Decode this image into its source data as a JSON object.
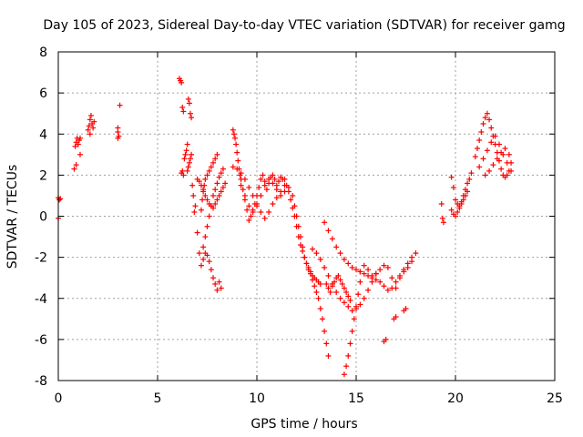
{
  "chart_data": {
    "type": "scatter",
    "title": "Day 105 of 2023, Sidereal Day-to-day VTEC variation (SDTVAR) for receiver gamg",
    "xlabel": "GPS time / hours",
    "ylabel": "SDTVAR / TECUs",
    "xlim": [
      0,
      25
    ],
    "ylim": [
      -8,
      8
    ],
    "xticks": [
      0,
      5,
      10,
      15,
      20,
      25
    ],
    "yticks": [
      -8,
      -6,
      -4,
      -2,
      0,
      2,
      4,
      6,
      8
    ],
    "xtick_labels": [
      "0",
      "5",
      "10",
      "15",
      "20",
      "25"
    ],
    "ytick_labels": [
      "-8",
      "-6",
      "-4",
      "-2",
      "0",
      "2",
      "4",
      "6",
      "8"
    ],
    "grid": true,
    "marker": "plus",
    "color": "#ff0000",
    "series": [
      {
        "values_note": "",
        "x": [
          0.0,
          0.0,
          0.05,
          0.1,
          0.8,
          0.85,
          0.9,
          0.95,
          1.0,
          1.05,
          1.1,
          0.9,
          1.1,
          1.5,
          1.55,
          1.6,
          1.65,
          1.7,
          1.75,
          1.8,
          1.6,
          3.0,
          3.0,
          3.0,
          3.05,
          3.1,
          6.1,
          6.15,
          6.2,
          6.25,
          6.3,
          6.2,
          6.25,
          6.3,
          6.35,
          6.4,
          6.45,
          6.5,
          6.55,
          6.6,
          6.65,
          6.7,
          6.5,
          6.55,
          6.6,
          6.65,
          6.7,
          6.75,
          6.8,
          6.85,
          6.9,
          7.0,
          7.1,
          7.2,
          7.3,
          7.4,
          7.5,
          7.6,
          7.7,
          7.8,
          7.9,
          8.0,
          8.1,
          8.2,
          7.2,
          7.25,
          7.3,
          7.35,
          7.4,
          7.5,
          7.6,
          7.7,
          7.8,
          7.9,
          8.0,
          7.3,
          7.4,
          7.5,
          7.6,
          7.7,
          7.8,
          7.9,
          8.0,
          8.1,
          8.2,
          8.3,
          7.0,
          7.1,
          7.2,
          7.3,
          7.4,
          7.5,
          7.6,
          7.7,
          7.8,
          7.9,
          8.0,
          8.1,
          8.2,
          8.3,
          8.4,
          8.8,
          8.85,
          8.9,
          8.95,
          9.0,
          9.05,
          9.1,
          9.15,
          9.2,
          9.3,
          9.4,
          9.5,
          9.6,
          9.7,
          9.8,
          9.9,
          10.0,
          10.1,
          10.2,
          10.3,
          10.4,
          10.5,
          10.6,
          10.7,
          10.8,
          10.9,
          11.0,
          11.1,
          11.2,
          11.3,
          8.8,
          9.0,
          9.2,
          9.4,
          9.6,
          9.8,
          10.0,
          10.2,
          10.4,
          10.6,
          10.8,
          11.0,
          11.2,
          11.4,
          11.6,
          9.2,
          9.4,
          9.6,
          9.8,
          10.0,
          10.2,
          10.4,
          10.6,
          10.8,
          11.0,
          11.2,
          11.4,
          11.4,
          11.5,
          11.6,
          11.7,
          11.8,
          11.9,
          12.0,
          12.1,
          12.2,
          12.3,
          12.4,
          12.5,
          12.6,
          12.7,
          12.8,
          12.9,
          13.0,
          13.1,
          13.2,
          13.3,
          13.4,
          13.5,
          13.6,
          11.8,
          11.9,
          12.0,
          12.1,
          12.2,
          12.3,
          12.4,
          12.5,
          12.6,
          12.7,
          12.8,
          12.9,
          13.0,
          13.1,
          13.2,
          12.8,
          13.0,
          13.2,
          13.4,
          13.6,
          13.8,
          14.0,
          14.2,
          14.4,
          14.6,
          14.8,
          15.0,
          15.2,
          15.4,
          15.6,
          15.8,
          16.0,
          13.4,
          13.6,
          13.8,
          14.0,
          14.2,
          14.4,
          14.6,
          14.8,
          15.0,
          15.2,
          15.4,
          15.6,
          15.8,
          16.0,
          16.2,
          16.4,
          16.6,
          16.8,
          17.0,
          17.2,
          17.4,
          17.6,
          17.8,
          18.0,
          14.4,
          14.5,
          14.6,
          14.7,
          14.8,
          14.9,
          15.0,
          15.1,
          15.2,
          13.5,
          13.6,
          13.7,
          13.8,
          13.9,
          14.0,
          14.1,
          14.2,
          14.3,
          14.4,
          14.5,
          14.6,
          14.7,
          15.2,
          15.4,
          15.6,
          15.8,
          16.0,
          16.2,
          16.4,
          16.6,
          16.8,
          17.0,
          17.2,
          17.4,
          17.6,
          17.8,
          16.4,
          16.5,
          16.9,
          17.0,
          17.4,
          17.5,
          19.3,
          19.35,
          19.4,
          19.8,
          19.9,
          20.0,
          20.1,
          20.2,
          20.3,
          20.4,
          20.5,
          20.6,
          20.7,
          20.8,
          19.8,
          19.9,
          20.0,
          20.1,
          20.2,
          20.3,
          20.4,
          20.5,
          20.6,
          21.0,
          21.1,
          21.2,
          21.3,
          21.4,
          21.5,
          21.6,
          21.7,
          21.8,
          21.9,
          22.0,
          22.1,
          22.2,
          22.3,
          22.4,
          22.5,
          22.6,
          22.7,
          22.8,
          21.2,
          21.4,
          21.6,
          21.8,
          22.0,
          22.2,
          22.4,
          22.6,
          22.8,
          21.5,
          21.7,
          21.9,
          22.1,
          22.3,
          22.5,
          22.7
        ],
        "y": [
          0.9,
          -0.1,
          0.8,
          0.85,
          2.3,
          3.4,
          3.6,
          3.8,
          3.5,
          3.7,
          3.8,
          2.5,
          3.0,
          4.2,
          4.4,
          4.7,
          4.9,
          4.5,
          4.3,
          4.6,
          4.0,
          3.8,
          4.1,
          4.3,
          3.9,
          5.4,
          6.7,
          6.6,
          6.5,
          5.3,
          5.1,
          2.1,
          2.2,
          2.0,
          2.8,
          3.0,
          3.2,
          3.5,
          5.7,
          5.5,
          5.0,
          4.8,
          2.2,
          2.4,
          2.6,
          2.8,
          3.0,
          1.5,
          1.0,
          0.2,
          0.5,
          -0.8,
          -1.8,
          -2.4,
          -2.1,
          -1.8,
          -1.9,
          -2.2,
          -2.6,
          -3.0,
          -3.3,
          -3.6,
          -3.2,
          -3.5,
          0.3,
          0.8,
          1.2,
          1.5,
          1.8,
          2.0,
          2.2,
          2.4,
          2.6,
          2.8,
          3.0,
          -1.5,
          -1.0,
          -0.5,
          0.0,
          0.5,
          1.0,
          1.3,
          1.6,
          1.9,
          2.1,
          2.3,
          1.8,
          1.7,
          1.5,
          1.3,
          1.0,
          0.8,
          0.6,
          0.5,
          0.4,
          0.6,
          0.8,
          1.0,
          1.2,
          1.4,
          1.6,
          4.2,
          4.0,
          3.8,
          3.5,
          3.1,
          2.7,
          2.3,
          2.0,
          1.8,
          1.3,
          0.8,
          0.3,
          -0.2,
          0.0,
          0.3,
          0.6,
          1.0,
          1.4,
          1.8,
          2.0,
          1.7,
          1.3,
          1.6,
          1.9,
          2.0,
          1.8,
          1.5,
          1.7,
          1.9,
          1.8,
          2.4,
          2.3,
          2.1,
          1.8,
          1.4,
          1.0,
          0.6,
          0.2,
          -0.1,
          0.2,
          0.6,
          0.9,
          1.2,
          1.5,
          1.4,
          1.5,
          1.0,
          0.5,
          0.2,
          0.5,
          1.0,
          1.5,
          1.8,
          1.6,
          1.3,
          1.0,
          1.2,
          1.8,
          1.5,
          1.2,
          0.8,
          0.4,
          0.0,
          -0.5,
          -1.0,
          -1.4,
          -1.7,
          -2.0,
          -2.3,
          -2.6,
          -2.8,
          -3.1,
          -3.4,
          -3.7,
          -4.0,
          -4.5,
          -5.0,
          -5.6,
          -6.2,
          -6.8,
          1.0,
          0.5,
          0.0,
          -0.5,
          -1.0,
          -1.5,
          -2.0,
          -2.3,
          -2.5,
          -2.7,
          -2.9,
          -3.0,
          -3.1,
          -3.2,
          -3.3,
          -1.6,
          -1.8,
          -2.1,
          -2.5,
          -2.9,
          -3.3,
          -3.7,
          -4.0,
          -4.2,
          -4.4,
          -4.6,
          -4.5,
          -4.3,
          -4.0,
          -3.6,
          -3.2,
          -2.8,
          -0.3,
          -0.7,
          -1.1,
          -1.5,
          -1.8,
          -2.1,
          -2.3,
          -2.5,
          -2.6,
          -2.7,
          -2.8,
          -2.9,
          -3.0,
          -2.8,
          -2.6,
          -2.4,
          -2.5,
          -3.0,
          -3.5,
          -3.0,
          -2.6,
          -2.3,
          -2.0,
          -1.8,
          -7.7,
          -7.3,
          -6.8,
          -6.2,
          -5.6,
          -5.0,
          -4.4,
          -3.8,
          -3.2,
          -3.3,
          -3.5,
          -3.7,
          -3.4,
          -3.2,
          -3.0,
          -2.9,
          -3.1,
          -3.3,
          -3.5,
          -3.7,
          -3.9,
          -4.1,
          -2.7,
          -2.4,
          -2.6,
          -2.9,
          -3.1,
          -3.2,
          -3.4,
          -3.6,
          -3.5,
          -3.2,
          -2.9,
          -2.7,
          -2.5,
          -2.2,
          -6.1,
          -6.0,
          -5.0,
          -4.9,
          -4.6,
          -4.5,
          0.6,
          -0.1,
          -0.3,
          1.9,
          1.4,
          0.8,
          0.6,
          0.5,
          0.7,
          1.0,
          1.3,
          1.6,
          1.8,
          2.1,
          0.3,
          0.1,
          0.0,
          0.2,
          0.4,
          0.6,
          0.8,
          1.0,
          1.2,
          2.9,
          3.3,
          3.7,
          4.1,
          4.5,
          4.8,
          5.0,
          4.7,
          4.3,
          3.9,
          3.5,
          3.1,
          2.7,
          2.3,
          2.0,
          1.9,
          2.0,
          2.2,
          2.6,
          2.4,
          2.8,
          3.2,
          3.6,
          3.9,
          3.5,
          3.0,
          2.6,
          2.2,
          2.0,
          2.2,
          2.5,
          2.8,
          3.1,
          3.3,
          3.0
        ]
      }
    ]
  }
}
